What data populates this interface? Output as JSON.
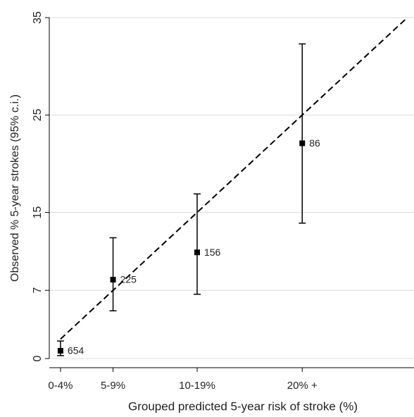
{
  "chart_data": {
    "type": "scatter",
    "x_label": "Grouped predicted 5-year risk of stroke (%)",
    "y_label": "Observed % 5-year strokes (95% c.i.)",
    "series": [
      {
        "color": "#000000",
        "x": [
          2,
          7,
          15,
          25
        ],
        "values": [
          0.8,
          8.1,
          10.9,
          22.1
        ],
        "lower": [
          0.3,
          4.9,
          6.6,
          13.9
        ],
        "upper": [
          1.8,
          12.4,
          16.9,
          32.3
        ],
        "point_labels": [
          654,
          225,
          156,
          86
        ]
      }
    ],
    "reference_line": {
      "x": [
        2,
        35
      ],
      "y": [
        2,
        35
      ]
    },
    "xlim": [
      1,
      35.5
    ],
    "ylim": [
      0,
      35
    ],
    "xticks": [
      {
        "value": 2,
        "label": "0-4%"
      },
      {
        "value": 7,
        "label": "5-9%"
      },
      {
        "value": 15,
        "label": "10-19%"
      },
      {
        "value": 25,
        "label": "20% +"
      }
    ],
    "yticks": [
      0,
      7,
      15,
      25,
      35
    ],
    "grid": true
  }
}
